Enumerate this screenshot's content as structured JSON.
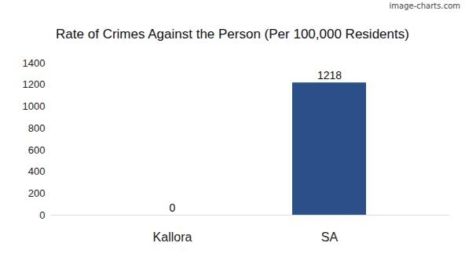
{
  "chart_data": {
    "type": "bar",
    "title": "Rate of Crimes Against the Person (Per 100,000 Residents)",
    "annotation": "image-charts.com",
    "categories": [
      "Kallora",
      "SA"
    ],
    "values": [
      0,
      1218
    ],
    "color": "#2b5089",
    "ylim": [
      0,
      1400
    ],
    "yticks": [
      0,
      200,
      400,
      600,
      800,
      1000,
      1200,
      1400
    ],
    "grid": false,
    "data_labels": true
  }
}
